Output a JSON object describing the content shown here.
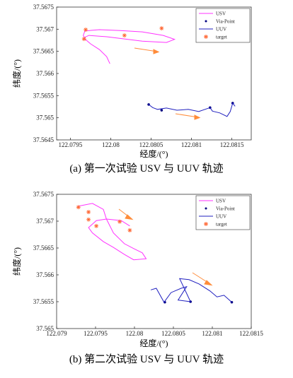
{
  "chart_data": [
    {
      "type": "line",
      "xlabel": "经度/(°)",
      "ylabel": "纬度/(°)",
      "caption": "(a) 第一次试验 USV 与 UUV 轨迹",
      "xlim": [
        122.07933,
        122.08174
      ],
      "ylim": [
        37.5645,
        37.5675
      ],
      "xticks": [
        122.0795,
        122.08,
        122.0805,
        122.081,
        122.0815
      ],
      "yticks": [
        37.5645,
        37.565,
        37.5655,
        37.566,
        37.5665,
        37.567,
        37.5675
      ],
      "series": [
        {
          "name": "USV",
          "color": "#ff33ff",
          "marker": "line",
          "x": [
            122.07999,
            122.07995,
            122.07986,
            122.07975,
            122.07968,
            122.07966,
            122.07968,
            122.07986,
            122.08012,
            122.08039,
            122.08065,
            122.08079,
            122.08069,
            122.08039,
            122.08017,
            122.07995,
            122.07973,
            122.07967
          ],
          "values": [
            37.56622,
            37.56638,
            37.56654,
            37.56667,
            37.56678,
            37.56686,
            37.56696,
            37.56699,
            37.56697,
            37.56694,
            37.56686,
            37.56677,
            37.5667,
            37.56673,
            37.56678,
            37.56683,
            37.56686,
            37.56681
          ]
        },
        {
          "name": "Via-Point",
          "color": "#000080",
          "marker": "dot",
          "x": [
            122.08047,
            122.08063,
            122.08123,
            122.08151
          ],
          "values": [
            37.5653,
            37.56517,
            37.56523,
            37.56533
          ]
        },
        {
          "name": "UUV",
          "color": "#1f1fbf",
          "marker": "line",
          "x": [
            122.08047,
            122.08052,
            122.08058,
            122.08069,
            122.08082,
            122.08096,
            122.08109,
            122.08123,
            122.08126,
            122.08135,
            122.08144,
            122.08148,
            122.08151,
            122.08154
          ],
          "values": [
            37.5653,
            37.56523,
            37.56519,
            37.56522,
            37.56517,
            37.56519,
            37.56514,
            37.56523,
            37.56515,
            37.56511,
            37.56503,
            37.56514,
            37.56533,
            37.56526
          ]
        },
        {
          "name": "target",
          "color": "#ff6633",
          "marker": "asterisk",
          "x": [
            122.07969,
            122.07967,
            122.08017,
            122.08063
          ],
          "values": [
            37.56699,
            37.56678,
            37.56686,
            37.56702
          ]
        }
      ]
    },
    {
      "type": "line",
      "xlabel": "经度/(°)",
      "ylabel": "纬度/(°)",
      "caption": "(b) 第二次试验 USV 与 UUV 轨迹",
      "xlim": [
        122.079,
        122.0815
      ],
      "ylim": [
        37.565,
        37.5675
      ],
      "xticks": [
        122.079,
        122.0795,
        122.08,
        122.0805,
        122.081,
        122.0815
      ],
      "yticks": [
        37.565,
        37.5655,
        37.566,
        37.5665,
        37.567,
        37.5675
      ],
      "series": [
        {
          "name": "USV",
          "color": "#ff33ff",
          "marker": "line",
          "x": [
            122.07928,
            122.07946,
            122.0796,
            122.07964,
            122.07973,
            122.07987,
            122.07999,
            122.0801,
            122.08015,
            122.07999,
            122.07987,
            122.07973,
            122.0796,
            122.07946,
            122.07941,
            122.07951,
            122.07964,
            122.07983,
            122.07994
          ],
          "values": [
            37.56728,
            37.56733,
            37.56722,
            37.56704,
            37.56678,
            37.56658,
            37.56649,
            37.56641,
            37.5663,
            37.56628,
            37.56638,
            37.56651,
            37.56662,
            37.56678,
            37.56688,
            37.56701,
            37.56704,
            37.56701,
            37.56691
          ]
        },
        {
          "name": "Via-Point",
          "color": "#000080",
          "marker": "dot",
          "x": [
            122.08039,
            122.08072,
            122.08125
          ],
          "values": [
            37.56549,
            37.5655,
            37.56549
          ]
        },
        {
          "name": "UUV",
          "color": "#1f1fbf",
          "marker": "line",
          "x": [
            122.08021,
            122.08028,
            122.08038,
            122.08047,
            122.0806,
            122.08067,
            122.08056,
            122.08072,
            122.08058,
            122.0807,
            122.08083,
            122.08097,
            122.08106,
            122.08115,
            122.08125
          ],
          "values": [
            37.56572,
            37.56575,
            37.56549,
            37.56567,
            37.56575,
            37.56578,
            37.56553,
            37.5655,
            37.56593,
            37.56591,
            37.56583,
            37.5657,
            37.56559,
            37.56562,
            37.56549
          ]
        },
        {
          "name": "target",
          "color": "#ff6633",
          "marker": "asterisk",
          "x": [
            122.07928,
            122.07941,
            122.07941,
            122.07951,
            122.07981,
            122.07994
          ],
          "values": [
            37.56726,
            37.56717,
            37.56703,
            37.56691,
            37.56699,
            37.56683
          ]
        }
      ]
    }
  ]
}
